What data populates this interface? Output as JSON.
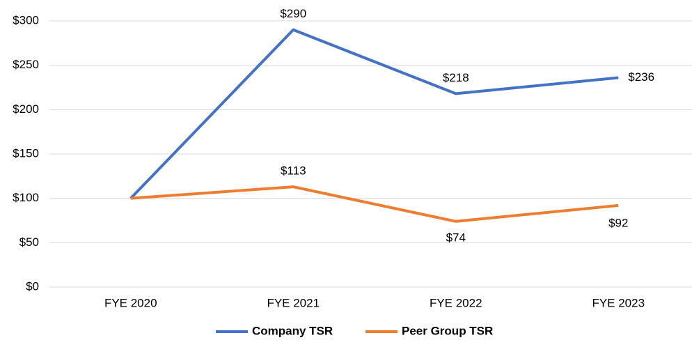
{
  "chart_data": {
    "type": "line",
    "categories": [
      "FYE 2020",
      "FYE 2021",
      "FYE 2022",
      "FYE 2023"
    ],
    "series": [
      {
        "name": "Company TSR",
        "color": "#4472c4",
        "values": [
          100,
          290,
          218,
          236
        ],
        "value_labels": [
          null,
          "$290",
          "$218",
          "$236"
        ]
      },
      {
        "name": "Peer Group TSR",
        "color": "#ed7d31",
        "values": [
          100,
          113,
          74,
          92
        ],
        "value_labels": [
          null,
          "$113",
          "$74",
          "$92"
        ]
      }
    ],
    "ylim": [
      0,
      300
    ],
    "yticks": [
      {
        "value": 0,
        "label": "$0"
      },
      {
        "value": 50,
        "label": "$50"
      },
      {
        "value": 100,
        "label": "$100"
      },
      {
        "value": 150,
        "label": "$150"
      },
      {
        "value": 200,
        "label": "$200"
      },
      {
        "value": 250,
        "label": "$250"
      },
      {
        "value": 300,
        "label": "$300"
      }
    ],
    "grid": true,
    "legend": "bottom"
  }
}
